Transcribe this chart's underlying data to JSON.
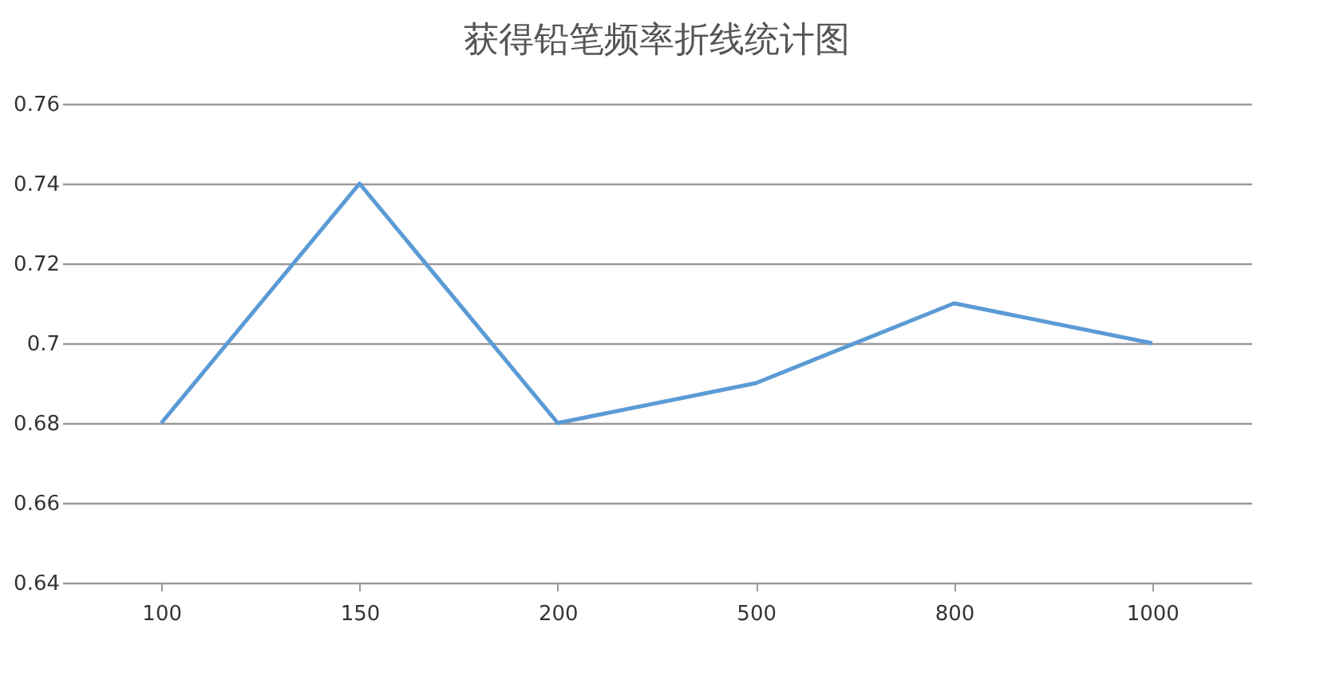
{
  "chart_data": {
    "type": "line",
    "title": "获得铅笔频率折线统计图",
    "categories": [
      "100",
      "150",
      "200",
      "500",
      "800",
      "1000"
    ],
    "series": [
      {
        "color": "#5b9bd5",
        "values": [
          0.68,
          0.74,
          0.68,
          0.69,
          0.71,
          0.7
        ]
      }
    ],
    "ylim": [
      0.64,
      0.76
    ],
    "yticks": [
      0.64,
      0.66,
      0.68,
      0.7,
      0.72,
      0.74,
      0.76
    ],
    "grid": "y",
    "legend": false,
    "marker": "none",
    "line_style": "solid"
  }
}
